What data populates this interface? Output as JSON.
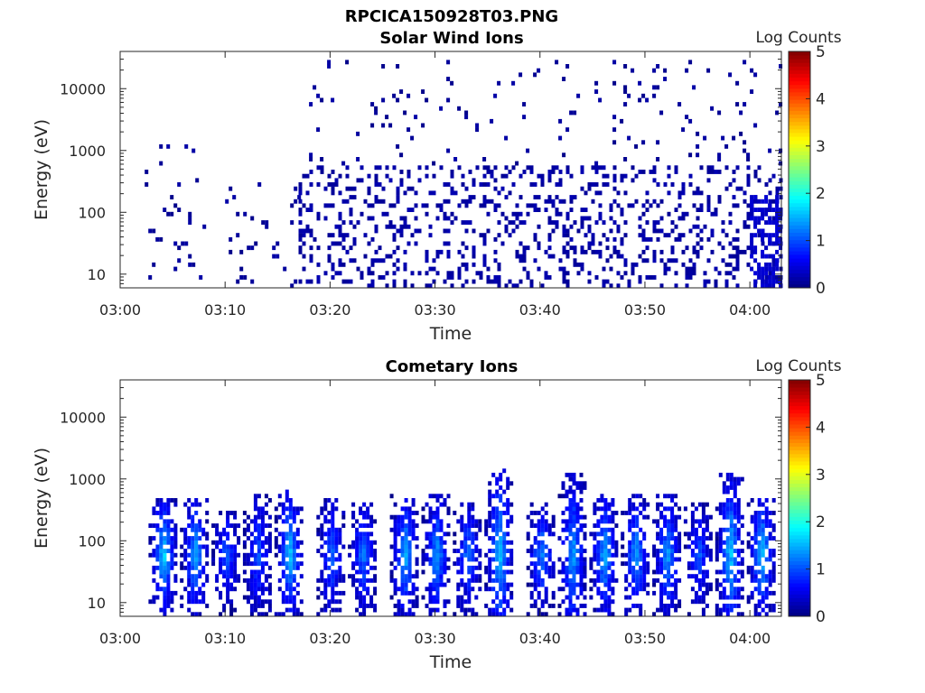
{
  "figure_title": "RPCICA150928T03.PNG",
  "colormap": [
    "#00007f",
    "#0000ff",
    "#007fff",
    "#00ffff",
    "#7fff7f",
    "#ffff00",
    "#ff7f00",
    "#ff0000",
    "#7f0000"
  ],
  "chart_data": [
    {
      "type": "heatmap",
      "title": "Solar Wind Ions",
      "xlabel": "Time",
      "ylabel": "Energy (eV)",
      "x_ticks": [
        "03:00",
        "03:10",
        "03:20",
        "03:30",
        "03:40",
        "03:50",
        "04:00"
      ],
      "y_ticks": [
        "10",
        "100",
        "1000",
        "10000"
      ],
      "y_scale": "log",
      "xlim": [
        "03:00",
        "04:03"
      ],
      "ylim": [
        6,
        40000
      ],
      "colorbar": {
        "label": "Log Counts",
        "ticks": [
          "0",
          "1",
          "2",
          "3",
          "4",
          "5"
        ],
        "range": [
          0,
          5
        ]
      },
      "activity": [
        {
          "start": "03:02",
          "end": "03:08",
          "e_low": 6,
          "e_high": 1500,
          "level": 0.05,
          "density": 0.06
        },
        {
          "start": "03:10",
          "end": "03:17",
          "e_low": 6,
          "e_high": 300,
          "level": 0.05,
          "density": 0.05
        },
        {
          "start": "03:17",
          "end": "04:03",
          "e_low": 6,
          "e_high": 600,
          "level": 0.1,
          "density": 0.22
        },
        {
          "start": "03:18",
          "end": "04:03",
          "e_low": 600,
          "e_high": 30000,
          "level": 0.05,
          "density": 0.04
        },
        {
          "start": "04:00",
          "end": "04:03",
          "e_low": 6,
          "e_high": 200,
          "level": 0.3,
          "density": 0.55
        }
      ]
    },
    {
      "type": "heatmap",
      "title": "Cometary Ions",
      "xlabel": "Time",
      "ylabel": "Energy (eV)",
      "x_ticks": [
        "03:00",
        "03:10",
        "03:20",
        "03:30",
        "03:40",
        "03:50",
        "04:00"
      ],
      "y_ticks": [
        "10",
        "100",
        "1000",
        "10000"
      ],
      "y_scale": "log",
      "xlim": [
        "03:00",
        "04:03"
      ],
      "ylim": [
        6,
        40000
      ],
      "colorbar": {
        "label": "Log Counts",
        "ticks": [
          "0",
          "1",
          "2",
          "3",
          "4",
          "5"
        ],
        "range": [
          0,
          5
        ]
      },
      "bursts": [
        {
          "time": "03:04",
          "e_low": 6,
          "e_high": 500,
          "peak": 1.6
        },
        {
          "time": "03:07",
          "e_low": 6,
          "e_high": 500,
          "peak": 1.4
        },
        {
          "time": "03:10",
          "e_low": 6,
          "e_high": 300,
          "peak": 1.0
        },
        {
          "time": "03:13",
          "e_low": 6,
          "e_high": 550,
          "peak": 0.9
        },
        {
          "time": "03:16",
          "e_low": 6,
          "e_high": 650,
          "peak": 1.5
        },
        {
          "time": "03:20",
          "e_low": 6,
          "e_high": 500,
          "peak": 1.0
        },
        {
          "time": "03:23",
          "e_low": 6,
          "e_high": 450,
          "peak": 1.1
        },
        {
          "time": "03:27",
          "e_low": 6,
          "e_high": 600,
          "peak": 1.4
        },
        {
          "time": "03:30",
          "e_low": 6,
          "e_high": 550,
          "peak": 1.3
        },
        {
          "time": "03:33",
          "e_low": 6,
          "e_high": 400,
          "peak": 1.1
        },
        {
          "time": "03:36",
          "e_low": 6,
          "e_high": 1400,
          "peak": 1.5
        },
        {
          "time": "03:40",
          "e_low": 6,
          "e_high": 400,
          "peak": 1.2
        },
        {
          "time": "03:43",
          "e_low": 6,
          "e_high": 1200,
          "peak": 1.3
        },
        {
          "time": "03:46",
          "e_low": 6,
          "e_high": 600,
          "peak": 1.4
        },
        {
          "time": "03:49",
          "e_low": 6,
          "e_high": 550,
          "peak": 1.3
        },
        {
          "time": "03:52",
          "e_low": 6,
          "e_high": 550,
          "peak": 1.3
        },
        {
          "time": "03:55",
          "e_low": 6,
          "e_high": 400,
          "peak": 0.9
        },
        {
          "time": "03:58",
          "e_low": 6,
          "e_high": 1300,
          "peak": 1.5
        },
        {
          "time": "04:01",
          "e_low": 6,
          "e_high": 500,
          "peak": 1.6
        }
      ]
    }
  ]
}
